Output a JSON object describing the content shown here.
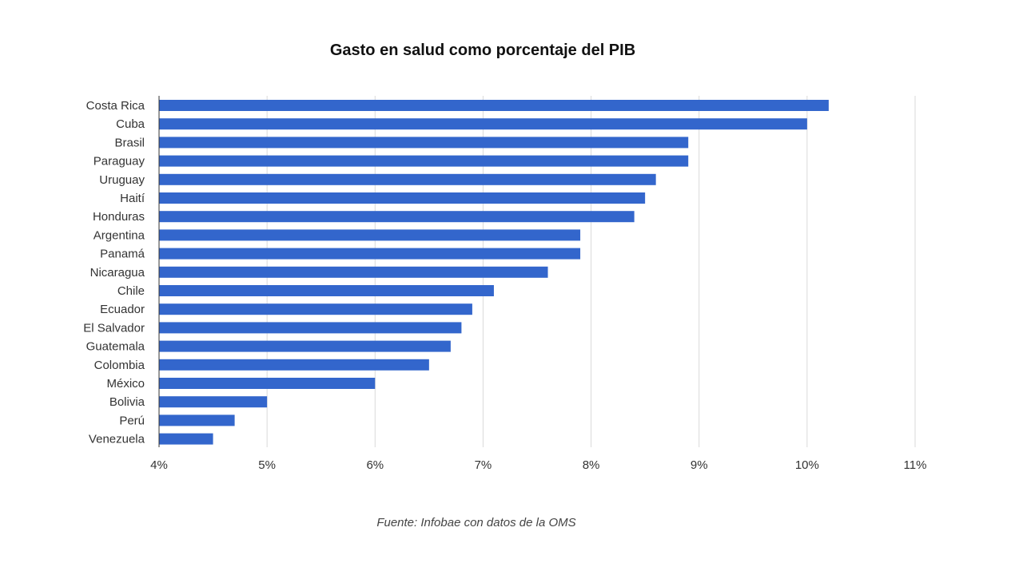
{
  "chart_data": {
    "type": "bar",
    "orientation": "horizontal",
    "title": "Gasto en salud como porcentaje del PIB",
    "categories": [
      "Costa Rica",
      "Cuba",
      "Brasil",
      "Paraguay",
      "Uruguay",
      "Haití",
      "Honduras",
      "Argentina",
      "Panamá",
      "Nicaragua",
      "Chile",
      "Ecuador",
      "El Salvador",
      "Guatemala",
      "Colombia",
      "México",
      "Bolivia",
      "Perú",
      "Venezuela"
    ],
    "values": [
      10.2,
      10.0,
      8.9,
      8.9,
      8.6,
      8.5,
      8.4,
      7.9,
      7.9,
      7.6,
      7.1,
      6.9,
      6.8,
      6.7,
      6.5,
      6.0,
      5.0,
      4.7,
      4.5
    ],
    "xlim": [
      4,
      11
    ],
    "x_ticks": [
      "4%",
      "5%",
      "6%",
      "7%",
      "8%",
      "9%",
      "10%",
      "11%"
    ],
    "xlabel": "",
    "ylabel": "",
    "grid": "vertical",
    "legend": "none",
    "bar_color": "#3366cc",
    "grid_color": "#d9d9d9",
    "source": "Fuente: Infobae con datos de la OMS"
  }
}
